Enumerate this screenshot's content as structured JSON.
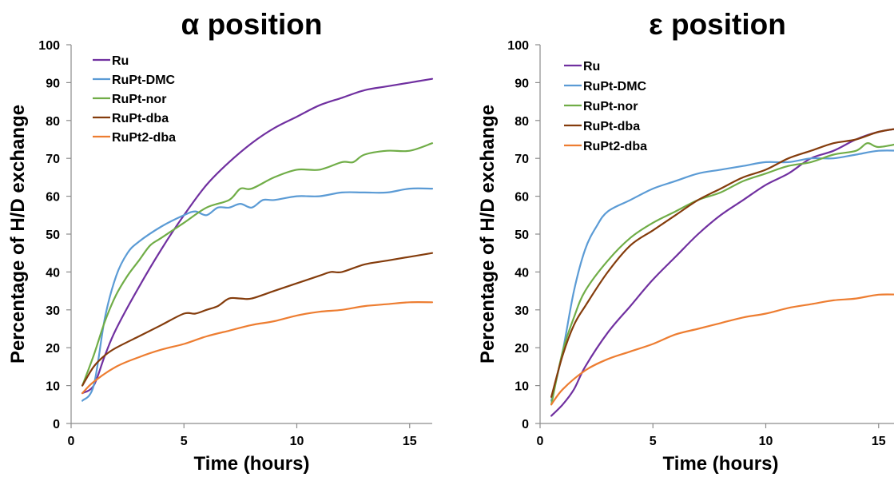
{
  "chart_data": [
    {
      "type": "line",
      "title": "α position",
      "xlabel": "Time (hours)",
      "ylabel": "Percentage of H/D exchange",
      "xlim": [
        0,
        16
      ],
      "ylim": [
        0,
        100
      ],
      "xticks": [
        0,
        5,
        10,
        15
      ],
      "yticks": [
        0,
        10,
        20,
        30,
        40,
        50,
        60,
        70,
        80,
        90,
        100
      ],
      "grid": false,
      "legend": "top-left",
      "series": [
        {
          "name": "Ru",
          "color": "#7030a0",
          "x": [
            0.5,
            1,
            1.5,
            2,
            3,
            4,
            5,
            6,
            7,
            8,
            9,
            10,
            11,
            12,
            13,
            14,
            15,
            16
          ],
          "y": [
            8,
            10,
            18,
            25,
            36,
            46,
            55,
            63,
            69,
            74,
            78,
            81,
            84,
            86,
            88,
            89,
            90,
            91
          ]
        },
        {
          "name": "RuPt-DMC",
          "color": "#5b9bd5",
          "x": [
            0.5,
            1,
            1.5,
            2,
            2.5,
            3,
            4,
            5,
            5.5,
            6,
            6.5,
            7,
            7.5,
            8,
            8.5,
            9,
            10,
            11,
            12,
            13,
            14,
            15,
            16
          ],
          "y": [
            6,
            10,
            28,
            39,
            45,
            48,
            52,
            55,
            56,
            55,
            57,
            57,
            58,
            57,
            59,
            59,
            60,
            60,
            61,
            61,
            61,
            62,
            62
          ]
        },
        {
          "name": "RuPt-nor",
          "color": "#70ad47",
          "x": [
            0.5,
            1,
            1.5,
            2,
            2.5,
            3,
            3.5,
            4,
            5,
            6,
            7,
            7.5,
            8,
            9,
            10,
            11,
            12,
            12.5,
            13,
            14,
            15,
            16
          ],
          "y": [
            10,
            18,
            27,
            34,
            39,
            43,
            47,
            49,
            53,
            57,
            59,
            62,
            62,
            65,
            67,
            67,
            69,
            69,
            71,
            72,
            72,
            74
          ]
        },
        {
          "name": "RuPt-dba",
          "color": "#843c0c",
          "x": [
            0.5,
            1,
            1.5,
            2,
            3,
            4,
            5,
            5.5,
            6,
            6.5,
            7,
            7.5,
            8,
            9,
            10,
            11,
            11.5,
            12,
            13,
            14,
            15,
            16
          ],
          "y": [
            10,
            15,
            18,
            20,
            23,
            26,
            29,
            29,
            30,
            31,
            33,
            33,
            33,
            35,
            37,
            39,
            40,
            40,
            42,
            43,
            44,
            45
          ]
        },
        {
          "name": "RuPt2-dba",
          "color": "#ed7d31",
          "x": [
            0.5,
            1,
            2,
            3,
            4,
            5,
            6,
            7,
            8,
            9,
            10,
            11,
            12,
            13,
            14,
            15,
            16
          ],
          "y": [
            8,
            11,
            15,
            17.5,
            19.5,
            21,
            23,
            24.5,
            26,
            27,
            28.5,
            29.5,
            30,
            31,
            31.5,
            32,
            32
          ]
        }
      ]
    },
    {
      "type": "line",
      "title": "ε position",
      "xlabel": "Time (hours)",
      "ylabel": "Percentage of H/D exchange",
      "xlim": [
        0,
        16
      ],
      "ylim": [
        0,
        100
      ],
      "xticks": [
        0,
        5,
        10,
        15
      ],
      "yticks": [
        0,
        10,
        20,
        30,
        40,
        50,
        60,
        70,
        80,
        90,
        100
      ],
      "grid": false,
      "legend": "top-left",
      "series": [
        {
          "name": "Ru",
          "color": "#7030a0",
          "x": [
            0.5,
            1,
            1.5,
            2,
            3,
            4,
            5,
            6,
            7,
            8,
            9,
            10,
            11,
            12,
            13,
            14,
            15,
            16
          ],
          "y": [
            2,
            5,
            9,
            15,
            24,
            31,
            38,
            44,
            50,
            55,
            59,
            63,
            66,
            70,
            72,
            75,
            77,
            78
          ]
        },
        {
          "name": "RuPt-DMC",
          "color": "#5b9bd5",
          "x": [
            0.5,
            1,
            1.5,
            2,
            2.5,
            3,
            4,
            5,
            6,
            7,
            8,
            9,
            10,
            11,
            12,
            13,
            14,
            15,
            16
          ],
          "y": [
            6,
            19,
            35,
            46,
            52,
            56,
            59,
            62,
            64,
            66,
            67,
            68,
            69,
            69,
            70,
            70,
            71,
            72,
            72
          ]
        },
        {
          "name": "RuPt-nor",
          "color": "#70ad47",
          "x": [
            0.5,
            1,
            1.5,
            2,
            3,
            4,
            5,
            6,
            7,
            8,
            9,
            10,
            11,
            12,
            13,
            14,
            14.5,
            15,
            16
          ],
          "y": [
            5,
            19,
            28,
            35,
            43,
            49,
            53,
            56,
            59,
            61,
            64,
            66,
            68,
            69,
            71,
            72,
            74,
            73,
            74
          ]
        },
        {
          "name": "RuPt-dba",
          "color": "#843c0c",
          "x": [
            0.5,
            1,
            1.5,
            2,
            3,
            4,
            5,
            6,
            7,
            8,
            9,
            10,
            11,
            12,
            13,
            14,
            15,
            16
          ],
          "y": [
            7,
            18,
            26,
            31,
            40,
            47,
            51,
            55,
            59,
            62,
            65,
            67,
            70,
            72,
            74,
            75,
            77,
            78
          ]
        },
        {
          "name": "RuPt2-dba",
          "color": "#ed7d31",
          "x": [
            0.5,
            1,
            2,
            3,
            4,
            5,
            6,
            7,
            8,
            9,
            10,
            11,
            12,
            13,
            14,
            15,
            16
          ],
          "y": [
            5,
            9,
            14,
            17,
            19,
            21,
            23.5,
            25,
            26.5,
            28,
            29,
            30.5,
            31.5,
            32.5,
            33,
            34,
            34
          ]
        }
      ]
    }
  ]
}
